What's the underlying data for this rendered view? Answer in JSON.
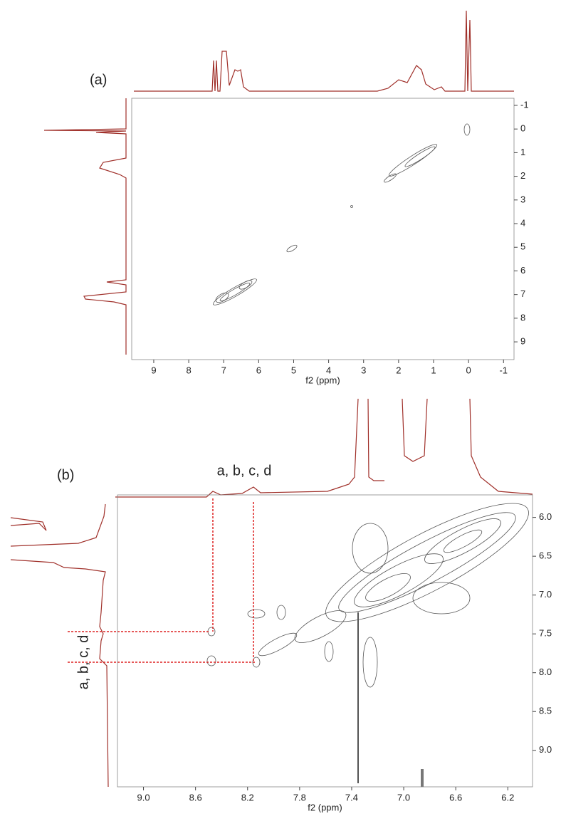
{
  "panels": [
    {
      "label": "(a)",
      "xlabel": "f2 (ppm)",
      "xlim": [
        9.63,
        -1.3
      ],
      "ylim": [
        -1.3,
        9.75
      ],
      "xticks": [
        9,
        8,
        7,
        6,
        5,
        4,
        3,
        2,
        1,
        0,
        -1
      ],
      "yticks": [
        -1,
        0,
        1,
        2,
        3,
        4,
        5,
        6,
        7,
        8,
        9
      ]
    },
    {
      "label": "(b)",
      "xlabel": "f2 (ppm)",
      "xlim": [
        9.2,
        6.01
      ],
      "ylim": [
        5.71,
        9.47
      ],
      "xticks": [
        {
          "value": 9,
          "label": "9.0"
        },
        {
          "value": 8.6,
          "label": "8.6"
        },
        {
          "value": 8.2,
          "label": "8.2"
        },
        {
          "value": 7.8,
          "label": "7.8"
        },
        {
          "value": 7.4,
          "label": "7.4"
        },
        {
          "value": 7,
          "label": "7.0"
        },
        {
          "value": 6.6,
          "label": "6.6"
        },
        {
          "value": 6.2,
          "label": "6.2"
        }
      ],
      "yticks": [
        {
          "value": 6,
          "label": "6.0"
        },
        6.5,
        {
          "value": 7,
          "label": "7.0"
        },
        7.5,
        {
          "value": 8,
          "label": "8.0"
        },
        8.5,
        {
          "value": 9,
          "label": "9.0"
        }
      ],
      "annotations": [
        "a, b, c, d",
        "a, b, c, d"
      ]
    }
  ]
}
